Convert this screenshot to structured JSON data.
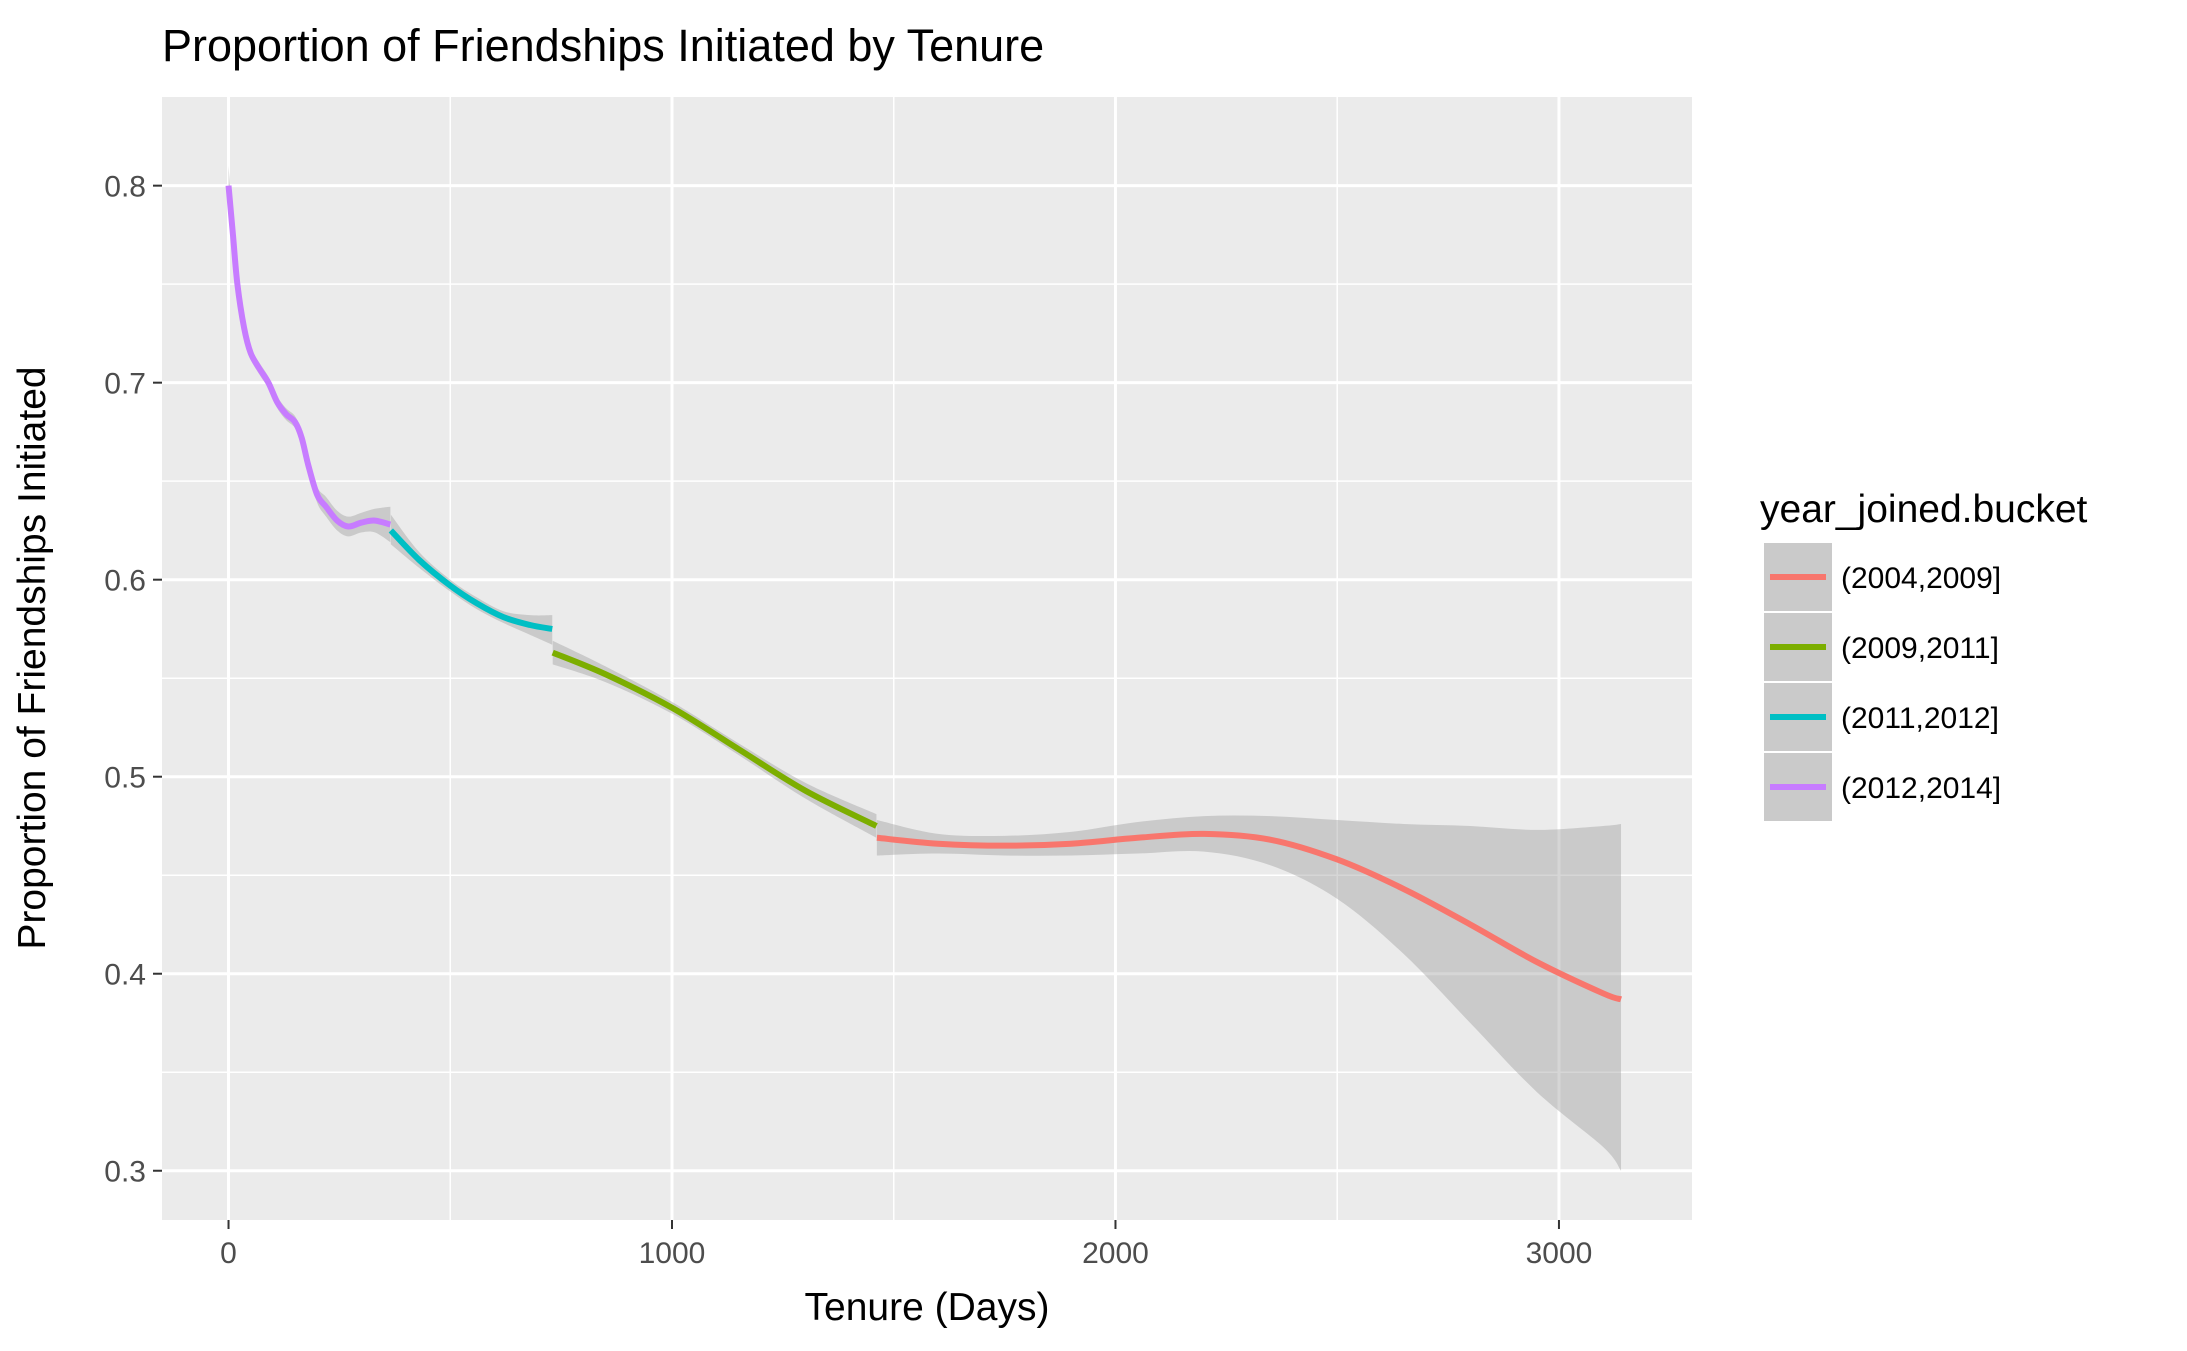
{
  "chart_data": {
    "type": "line",
    "title": "Proportion of Friendships Initiated by Tenure",
    "xlabel": "Tenure (Days)",
    "ylabel": "Proportion of Friendships Initiated",
    "xlim": [
      -150,
      3300
    ],
    "ylim": [
      0.275,
      0.845
    ],
    "x_ticks": [
      0,
      1000,
      2000,
      3000
    ],
    "x_tick_labels": [
      "0",
      "1000",
      "2000",
      "3000"
    ],
    "y_ticks": [
      0.3,
      0.4,
      0.5,
      0.6,
      0.7,
      0.8
    ],
    "y_tick_labels": [
      "0.3",
      "0.4",
      "0.5",
      "0.6",
      "0.7",
      "0.8"
    ],
    "grid": true,
    "legend_position": "right",
    "legend_title": "year_joined.bucket",
    "series": [
      {
        "name": "(2004,2009]",
        "color": "#F8766D",
        "x": [
          1462,
          1600,
          1750,
          1900,
          2050,
          2200,
          2350,
          2500,
          2650,
          2800,
          2950,
          3100,
          3140
        ],
        "y": [
          0.469,
          0.466,
          0.465,
          0.466,
          0.469,
          0.471,
          0.468,
          0.458,
          0.443,
          0.425,
          0.406,
          0.39,
          0.387
        ],
        "lower": [
          0.46,
          0.461,
          0.46,
          0.46,
          0.461,
          0.462,
          0.455,
          0.438,
          0.41,
          0.375,
          0.34,
          0.312,
          0.3
        ],
        "upper": [
          0.478,
          0.471,
          0.47,
          0.472,
          0.477,
          0.48,
          0.48,
          0.478,
          0.476,
          0.475,
          0.473,
          0.475,
          0.476
        ]
      },
      {
        "name": "(2009,2011]",
        "color": "#7CAE00",
        "x": [
          731,
          850,
          1000,
          1150,
          1300,
          1461
        ],
        "y": [
          0.563,
          0.552,
          0.535,
          0.514,
          0.493,
          0.475
        ],
        "lower": [
          0.557,
          0.548,
          0.532,
          0.511,
          0.489,
          0.469
        ],
        "upper": [
          0.569,
          0.556,
          0.538,
          0.517,
          0.497,
          0.481
        ]
      },
      {
        "name": "(2011,2012]",
        "color": "#00BFC4",
        "x": [
          366,
          430,
          500,
          560,
          620,
          680,
          730
        ],
        "y": [
          0.625,
          0.61,
          0.597,
          0.588,
          0.581,
          0.577,
          0.575
        ],
        "lower": [
          0.618,
          0.606,
          0.594,
          0.585,
          0.578,
          0.572,
          0.567
        ],
        "upper": [
          0.633,
          0.614,
          0.6,
          0.591,
          0.584,
          0.582,
          0.582
        ]
      },
      {
        "name": "(2012,2014]",
        "color": "#C77CFF",
        "x": [
          0,
          10,
          20,
          35,
          50,
          70,
          90,
          110,
          130,
          150,
          165,
          180,
          200,
          220,
          245,
          270,
          300,
          330,
          365
        ],
        "y": [
          0.8,
          0.775,
          0.75,
          0.728,
          0.715,
          0.707,
          0.7,
          0.69,
          0.684,
          0.68,
          0.672,
          0.658,
          0.643,
          0.637,
          0.63,
          0.627,
          0.629,
          0.63,
          0.628
        ],
        "lower": [
          0.79,
          0.768,
          0.745,
          0.724,
          0.712,
          0.704,
          0.697,
          0.687,
          0.681,
          0.677,
          0.669,
          0.655,
          0.639,
          0.632,
          0.625,
          0.622,
          0.624,
          0.624,
          0.619
        ],
        "upper": [
          0.81,
          0.782,
          0.755,
          0.732,
          0.718,
          0.71,
          0.703,
          0.693,
          0.687,
          0.683,
          0.675,
          0.661,
          0.647,
          0.642,
          0.635,
          0.632,
          0.634,
          0.636,
          0.637
        ]
      }
    ]
  }
}
